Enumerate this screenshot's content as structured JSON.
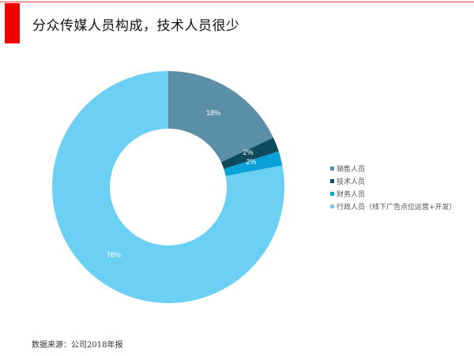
{
  "header": {
    "title": "分众传媒人员构成，技术人员很少",
    "accent_color": "#f00000"
  },
  "footer": {
    "source": "数据来源：公司2018年报"
  },
  "chart_data": {
    "type": "pie",
    "variant": "donut",
    "title": "分众传媒人员构成，技术人员很少",
    "categories": [
      "销售人员",
      "技术人员",
      "财务人员",
      "行政人员（线下广告点位运营+开发）"
    ],
    "values": [
      18,
      2,
      2,
      78
    ],
    "labels": [
      "18%",
      "2%",
      "2%",
      "78%"
    ],
    "colors": [
      "#5b8fa8",
      "#0d4a5e",
      "#0aa0d8",
      "#6ccff4"
    ],
    "legend_position": "right",
    "start_angle": "12 o'clock, clockwise"
  },
  "legend": {
    "items": [
      {
        "label": "销售人员",
        "color": "#5b8fa8"
      },
      {
        "label": "技术人员",
        "color": "#0d4a5e"
      },
      {
        "label": "财务人员",
        "color": "#0aa0d8"
      },
      {
        "label": "行政人员（线下广告点位运营+开发）",
        "color": "#6ccff4"
      }
    ]
  }
}
